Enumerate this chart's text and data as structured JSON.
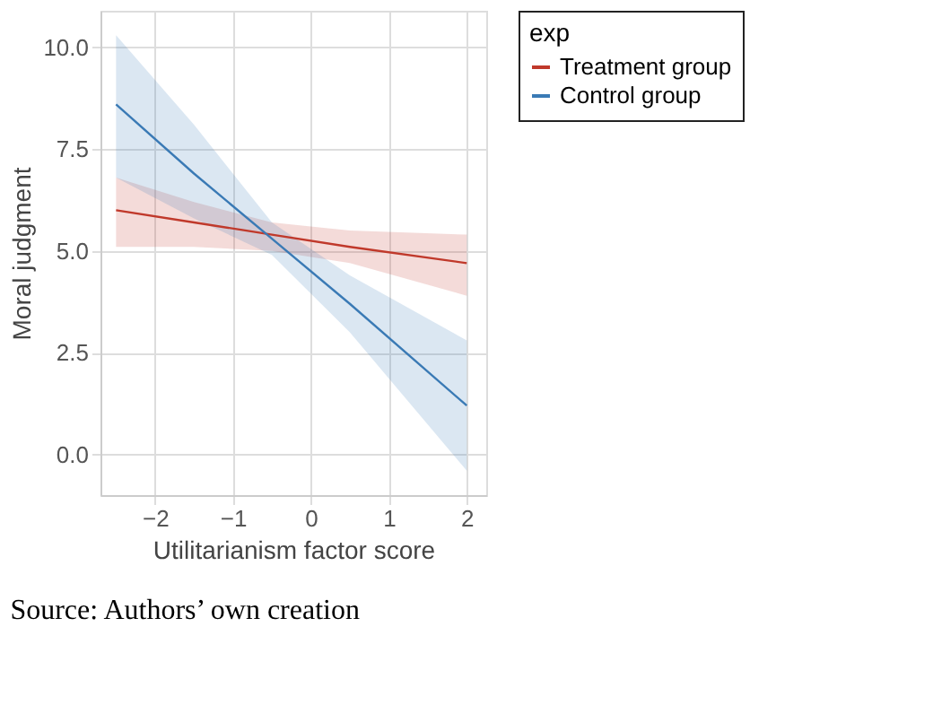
{
  "chart_data": {
    "type": "line",
    "xlabel": "Utilitarianism factor score",
    "ylabel": "Moral judgment",
    "legend_title": "exp",
    "x": [
      -2.5,
      -1.5,
      -0.5,
      0.5,
      2
    ],
    "series": [
      {
        "name": "Treatment group",
        "color": "#c0392b",
        "values": [
          6.0,
          5.7,
          5.4,
          5.1,
          4.7
        ],
        "lower": [
          5.1,
          5.1,
          5.0,
          4.7,
          3.9
        ],
        "upper": [
          6.8,
          6.2,
          5.7,
          5.5,
          5.4
        ]
      },
      {
        "name": "Control group",
        "color": "#3a7ab5",
        "values": [
          8.6,
          6.9,
          5.3,
          3.7,
          1.2
        ],
        "lower": [
          6.8,
          5.8,
          4.9,
          3.0,
          -0.4
        ],
        "upper": [
          10.3,
          8.1,
          5.7,
          4.4,
          2.8
        ]
      }
    ],
    "xlim": [
      -2.7,
      2.25
    ],
    "ylim": [
      -1,
      10.9
    ],
    "xticks": [
      -2,
      -1,
      0,
      1,
      2
    ],
    "yticks": [
      {
        "value": 0,
        "label": "0.0"
      },
      2.5,
      {
        "value": 5,
        "label": "5.0"
      },
      7.5,
      {
        "value": 10,
        "label": "10.0"
      }
    ],
    "grid": true,
    "legend": "right",
    "marker": "none",
    "line_style": "solid",
    "annotations": [
      "Source: Authors’ own creation"
    ]
  }
}
